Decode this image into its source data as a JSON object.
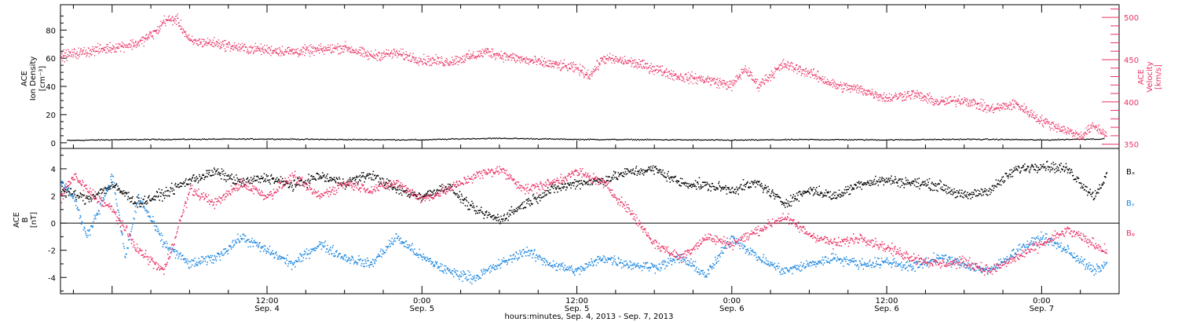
{
  "colors": {
    "black": "#000000",
    "blue": "#1a86e0",
    "pink": "#ea3163"
  },
  "chart_data": [
    {
      "type": "scatter",
      "panel": "top",
      "xlabel": "hours:minutes, Sep.  4, 2013 - Sep.  7, 2013",
      "ylabel_left": [
        "ACE",
        "Ion Density",
        "[cm⁻³]"
      ],
      "ylabel_right": [
        "ACE",
        "Velocity",
        "[km/s]"
      ],
      "x_ticks": [
        {
          "time": "12:00",
          "date": "Sep. 4"
        },
        {
          "time": "0:00",
          "date": "Sep. 5"
        },
        {
          "time": "12:00",
          "date": "Sep. 5"
        },
        {
          "time": "0:00",
          "date": "Sep. 6"
        },
        {
          "time": "12:00",
          "date": "Sep. 6"
        },
        {
          "time": "0:00",
          "date": "Sep. 7"
        }
      ],
      "x_range_hours_from_sep4_0000": [
        -4,
        78
      ],
      "ylim_left": [
        -4,
        98
      ],
      "yticks_left": [
        0,
        20,
        40,
        60,
        80
      ],
      "ylim_right": [
        345,
        515
      ],
      "yticks_right": [
        350,
        400,
        450,
        500
      ],
      "grid": false,
      "series": [
        {
          "axis": "left",
          "color": "black",
          "points": [
            [
              -3.5,
              2.0
            ],
            [
              0,
              2.5
            ],
            [
              6,
              2.8
            ],
            [
              12,
              3.0
            ],
            [
              18,
              2.6
            ],
            [
              24,
              2.4
            ],
            [
              27,
              3.1
            ],
            [
              30,
              3.5
            ],
            [
              36,
              2.7
            ],
            [
              42,
              2.5
            ],
            [
              48,
              2.2
            ],
            [
              54,
              2.6
            ],
            [
              60,
              2.4
            ],
            [
              66,
              2.8
            ],
            [
              70,
              2.6
            ],
            [
              72,
              2.3
            ],
            [
              75,
              2.9
            ],
            [
              76.8,
              3.0
            ]
          ]
        },
        {
          "axis": "right",
          "color": "pink",
          "points": [
            [
              -4,
              455
            ],
            [
              -2,
              460
            ],
            [
              0,
              465
            ],
            [
              2,
              470
            ],
            [
              3.5,
              485
            ],
            [
              4,
              497
            ],
            [
              5,
              498
            ],
            [
              6,
              472
            ],
            [
              8,
              470
            ],
            [
              10,
              464
            ],
            [
              12,
              462
            ],
            [
              14,
              460
            ],
            [
              16,
              462
            ],
            [
              18,
              465
            ],
            [
              20,
              455
            ],
            [
              22,
              458
            ],
            [
              24,
              450
            ],
            [
              26,
              448
            ],
            [
              28,
              455
            ],
            [
              29,
              460
            ],
            [
              30,
              456
            ],
            [
              32,
              450
            ],
            [
              34,
              445
            ],
            [
              36,
              440
            ],
            [
              37,
              432
            ],
            [
              38,
              452
            ],
            [
              40,
              448
            ],
            [
              42,
              440
            ],
            [
              44,
              430
            ],
            [
              46,
              427
            ],
            [
              48,
              420
            ],
            [
              49,
              440
            ],
            [
              50,
              420
            ],
            [
              52,
              445
            ],
            [
              54,
              435
            ],
            [
              56,
              420
            ],
            [
              58,
              415
            ],
            [
              60,
              405
            ],
            [
              62,
              410
            ],
            [
              64,
              400
            ],
            [
              66,
              403
            ],
            [
              68,
              392
            ],
            [
              70,
              398
            ],
            [
              72,
              378
            ],
            [
              74,
              366
            ],
            [
              75,
              360
            ],
            [
              76,
              372
            ],
            [
              77,
              362
            ]
          ]
        }
      ]
    },
    {
      "type": "scatter",
      "panel": "bottom",
      "ylabel": [
        "ACE",
        "B",
        "[nT]"
      ],
      "ylim": [
        -5.2,
        5.5
      ],
      "yticks": [
        -4,
        -2,
        0,
        2,
        4
      ],
      "zero_line": true,
      "legend": [
        "Bₓ",
        "Bᵧ",
        "Bᵩ"
      ],
      "legend_placement": "right",
      "grid": false,
      "series": [
        {
          "name": "Bx",
          "color": "black",
          "points": [
            [
              -4,
              2.5
            ],
            [
              -2,
              1.8
            ],
            [
              0,
              2.8
            ],
            [
              2,
              1.5
            ],
            [
              4,
              2.2
            ],
            [
              6,
              3.2
            ],
            [
              8,
              3.8
            ],
            [
              10,
              3.0
            ],
            [
              12,
              3.4
            ],
            [
              14,
              2.8
            ],
            [
              16,
              3.5
            ],
            [
              18,
              3.0
            ],
            [
              20,
              3.6
            ],
            [
              22,
              2.5
            ],
            [
              24,
              2.0
            ],
            [
              26,
              2.8
            ],
            [
              28,
              1.0
            ],
            [
              30,
              0.3
            ],
            [
              32,
              1.5
            ],
            [
              34,
              2.5
            ],
            [
              36,
              3.0
            ],
            [
              38,
              3.2
            ],
            [
              40,
              3.8
            ],
            [
              42,
              4.0
            ],
            [
              44,
              3.0
            ],
            [
              46,
              2.8
            ],
            [
              48,
              2.5
            ],
            [
              50,
              3.0
            ],
            [
              52,
              1.5
            ],
            [
              54,
              2.5
            ],
            [
              56,
              2.0
            ],
            [
              58,
              3.0
            ],
            [
              60,
              3.2
            ],
            [
              62,
              3.0
            ],
            [
              64,
              2.8
            ],
            [
              66,
              2.0
            ],
            [
              68,
              2.5
            ],
            [
              70,
              4.0
            ],
            [
              72,
              4.3
            ],
            [
              74,
              4.0
            ],
            [
              76,
              2.0
            ],
            [
              77,
              3.5
            ]
          ]
        },
        {
          "name": "By",
          "color": "blue",
          "points": [
            [
              -4,
              3.0
            ],
            [
              -3,
              2.0
            ],
            [
              -2,
              -1.0
            ],
            [
              0,
              3.5
            ],
            [
              1,
              -2.5
            ],
            [
              2,
              2.0
            ],
            [
              4,
              -1.5
            ],
            [
              6,
              -3.0
            ],
            [
              8,
              -2.5
            ],
            [
              10,
              -1.0
            ],
            [
              12,
              -2.0
            ],
            [
              14,
              -3.0
            ],
            [
              16,
              -1.5
            ],
            [
              18,
              -2.5
            ],
            [
              20,
              -3.0
            ],
            [
              22,
              -1.0
            ],
            [
              24,
              -2.5
            ],
            [
              26,
              -3.5
            ],
            [
              28,
              -4.0
            ],
            [
              30,
              -3.0
            ],
            [
              32,
              -2.0
            ],
            [
              34,
              -3.0
            ],
            [
              36,
              -3.5
            ],
            [
              38,
              -2.5
            ],
            [
              40,
              -3.0
            ],
            [
              42,
              -3.2
            ],
            [
              44,
              -2.5
            ],
            [
              46,
              -3.8
            ],
            [
              48,
              -1.0
            ],
            [
              50,
              -2.5
            ],
            [
              52,
              -3.5
            ],
            [
              54,
              -3.0
            ],
            [
              56,
              -2.5
            ],
            [
              58,
              -3.0
            ],
            [
              60,
              -2.8
            ],
            [
              62,
              -3.2
            ],
            [
              64,
              -2.5
            ],
            [
              66,
              -3.0
            ],
            [
              68,
              -3.5
            ],
            [
              70,
              -2.0
            ],
            [
              72,
              -1.0
            ],
            [
              74,
              -2.0
            ],
            [
              76,
              -3.5
            ],
            [
              77,
              -3.0
            ]
          ]
        },
        {
          "name": "Bz",
          "color": "pink",
          "points": [
            [
              -4,
              2.0
            ],
            [
              -3,
              3.5
            ],
            [
              -2,
              2.5
            ],
            [
              0,
              1.0
            ],
            [
              2,
              -2.0
            ],
            [
              4,
              -3.5
            ],
            [
              6,
              2.5
            ],
            [
              8,
              1.5
            ],
            [
              10,
              3.0
            ],
            [
              12,
              2.0
            ],
            [
              14,
              3.5
            ],
            [
              16,
              2.0
            ],
            [
              18,
              3.0
            ],
            [
              20,
              2.5
            ],
            [
              22,
              3.0
            ],
            [
              24,
              1.8
            ],
            [
              26,
              2.5
            ],
            [
              28,
              3.5
            ],
            [
              30,
              4.0
            ],
            [
              32,
              2.5
            ],
            [
              34,
              3.0
            ],
            [
              36,
              3.8
            ],
            [
              38,
              3.0
            ],
            [
              40,
              1.0
            ],
            [
              42,
              -1.5
            ],
            [
              44,
              -2.5
            ],
            [
              46,
              -1.0
            ],
            [
              48,
              -1.5
            ],
            [
              50,
              -0.5
            ],
            [
              52,
              0.5
            ],
            [
              54,
              -0.8
            ],
            [
              56,
              -1.5
            ],
            [
              58,
              -1.0
            ],
            [
              60,
              -1.8
            ],
            [
              62,
              -2.5
            ],
            [
              64,
              -3.0
            ],
            [
              66,
              -2.8
            ],
            [
              68,
              -3.5
            ],
            [
              70,
              -2.5
            ],
            [
              72,
              -1.5
            ],
            [
              74,
              -0.5
            ],
            [
              76,
              -1.5
            ],
            [
              77,
              -2.0
            ]
          ]
        }
      ]
    }
  ]
}
